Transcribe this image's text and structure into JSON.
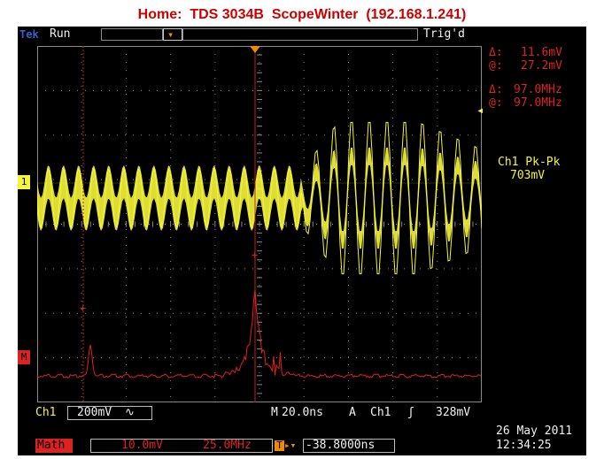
{
  "header": {
    "title": "Home:  TDS 3034B  ScopeWinter  (192.168.1.241)"
  },
  "top_bar": {
    "brand": "Tek",
    "run_state": "Run",
    "trigger_state": "Trig'd"
  },
  "cursors": {
    "amp_delta_label": "Δ:",
    "amp_delta_value": "11.6mV",
    "amp_at_label": "@:",
    "amp_at_value": "27.2mV",
    "freq_delta_label": "Δ:",
    "freq_delta_value": "97.0MHz",
    "freq_at_label": "@:",
    "freq_at_value": "97.0MHz"
  },
  "measurement": {
    "label": "Ch1 Pk-Pk",
    "value": "703mV"
  },
  "markers": {
    "ch1": "1",
    "math": "M"
  },
  "bottom_bar": {
    "ch1_label": "Ch1",
    "ch1_scale": "200mV",
    "ch1_coupling": "∿",
    "timebase_prefix": "M",
    "timebase": "20.0ns",
    "trigger_mode": "A",
    "trigger_source": "Ch1",
    "trigger_slope": "ʃ",
    "trigger_level": "328mV",
    "math_label": "Math",
    "math_scale": "10.0mV",
    "math_freq": "25.0MHz",
    "trigger_offset": "-38.8000ns",
    "date": "26 May 2011",
    "time": "12:34:25"
  },
  "colors": {
    "ch1": "#f5f53a",
    "math": "#dd2222",
    "grid": "#8a8a8a",
    "trigger_marker": "#f08a00",
    "title": "#cc0000"
  }
}
